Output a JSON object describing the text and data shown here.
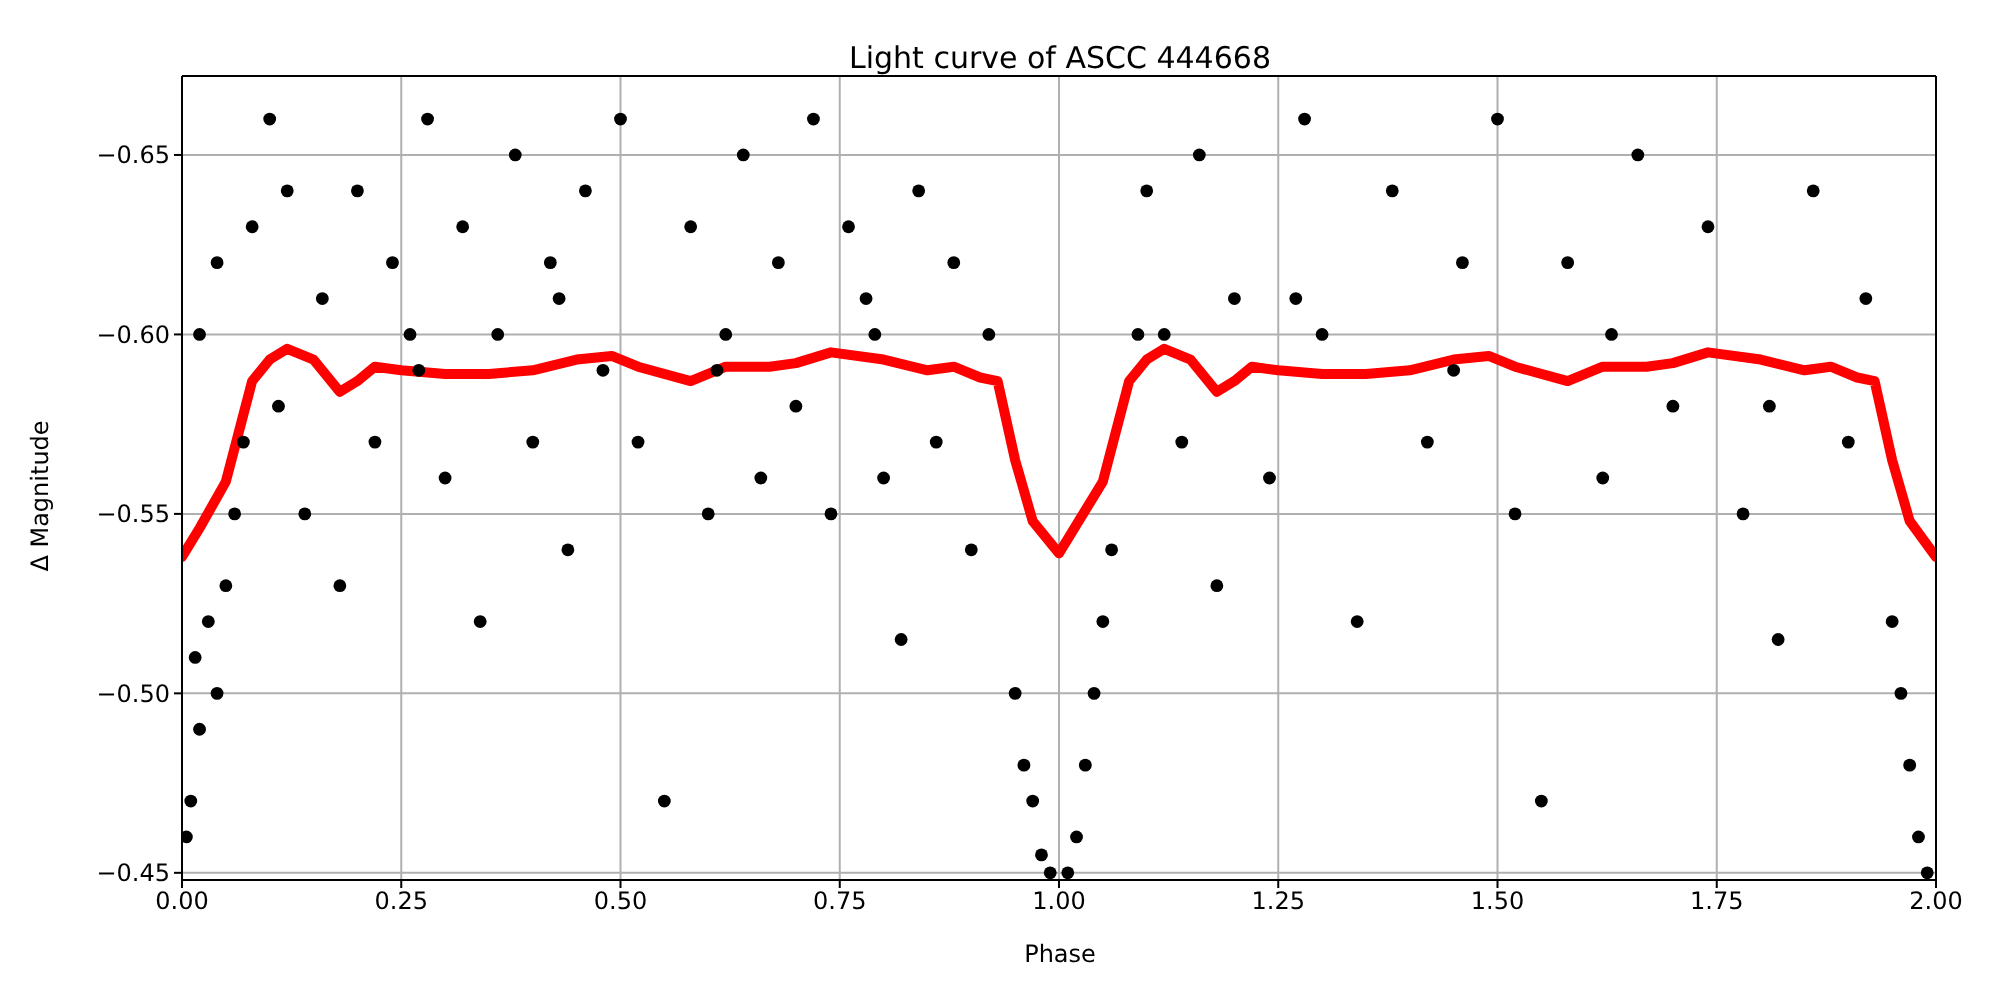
{
  "chart_data": {
    "type": "scatter",
    "title": "Light curve of ASCC 444668",
    "xlabel": "Phase",
    "ylabel": "Δ Magnitude",
    "xlim": [
      0,
      2
    ],
    "xticks": [
      {
        "value": 0,
        "label": "0.00"
      },
      {
        "value": 0.25,
        "label": "0.25"
      },
      {
        "value": 0.5,
        "label": "0.50"
      },
      {
        "value": 0.75,
        "label": "0.75"
      },
      {
        "value": 1,
        "label": "1.00"
      },
      {
        "value": 1.25,
        "label": "1.25"
      },
      {
        "value": 1.5,
        "label": "1.50"
      },
      {
        "value": 1.75,
        "label": "1.75"
      },
      {
        "value": 2,
        "label": "2.00"
      }
    ],
    "ylim": [
      -0.448,
      -0.672
    ],
    "yticks": [
      {
        "value": -0.65,
        "label": "−0.65"
      },
      {
        "value": -0.6,
        "label": "−0.60"
      },
      {
        "value": -0.55,
        "label": "−0.55"
      },
      {
        "value": -0.5,
        "label": "−0.50"
      },
      {
        "value": -0.45,
        "label": "−0.45"
      }
    ],
    "grid": true,
    "series": [
      {
        "color": "#000000",
        "marker": "circle",
        "x": [
          0.005,
          0.01,
          0.015,
          0.02,
          0.03,
          0.04,
          0.05,
          0.06,
          0.07,
          0.02,
          0.04,
          0.08,
          0.1,
          0.12,
          0.14,
          0.16,
          0.18,
          0.2,
          0.22,
          0.24,
          0.26,
          0.28,
          0.3,
          0.32,
          0.34,
          0.36,
          0.38,
          0.4,
          0.42,
          0.44,
          0.46,
          0.48,
          0.5,
          0.52,
          0.55,
          0.58,
          0.6,
          0.62,
          0.64,
          0.66,
          0.68,
          0.7,
          0.72,
          0.74,
          0.76,
          0.78,
          0.8,
          0.82,
          0.84,
          0.86,
          0.88,
          0.9,
          0.92,
          0.95,
          0.96,
          0.97,
          0.98,
          0.99,
          1.01,
          1.02,
          1.03,
          1.04,
          1.05,
          1.06,
          1.1,
          1.12,
          1.14,
          1.16,
          1.18,
          1.2,
          1.24,
          1.28,
          1.3,
          1.34,
          1.38,
          1.42,
          1.46,
          1.5,
          1.52,
          1.55,
          1.58,
          1.62,
          1.66,
          1.7,
          1.74,
          1.78,
          1.82,
          1.86,
          1.9,
          1.92,
          1.95,
          1.96,
          1.97,
          1.98,
          1.99,
          0.11,
          0.27,
          0.43,
          0.61,
          0.79,
          1.09,
          1.27,
          1.45,
          1.63,
          1.81
        ],
        "values": [
          -0.46,
          -0.47,
          -0.51,
          -0.49,
          -0.52,
          -0.5,
          -0.53,
          -0.55,
          -0.57,
          -0.6,
          -0.62,
          -0.63,
          -0.66,
          -0.64,
          -0.55,
          -0.61,
          -0.53,
          -0.64,
          -0.57,
          -0.62,
          -0.6,
          -0.66,
          -0.56,
          -0.63,
          -0.52,
          -0.6,
          -0.65,
          -0.57,
          -0.62,
          -0.54,
          -0.64,
          -0.59,
          -0.66,
          -0.57,
          -0.47,
          -0.63,
          -0.55,
          -0.6,
          -0.65,
          -0.56,
          -0.62,
          -0.58,
          -0.66,
          -0.55,
          -0.63,
          -0.61,
          -0.56,
          -0.515,
          -0.64,
          -0.57,
          -0.62,
          -0.54,
          -0.6,
          -0.5,
          -0.48,
          -0.47,
          -0.455,
          -0.45,
          -0.45,
          -0.46,
          -0.48,
          -0.5,
          -0.52,
          -0.54,
          -0.64,
          -0.6,
          -0.57,
          -0.65,
          -0.53,
          -0.61,
          -0.56,
          -0.66,
          -0.6,
          -0.52,
          -0.64,
          -0.57,
          -0.62,
          -0.66,
          -0.55,
          -0.47,
          -0.62,
          -0.56,
          -0.65,
          -0.58,
          -0.63,
          -0.55,
          -0.515,
          -0.64,
          -0.57,
          -0.61,
          -0.52,
          -0.5,
          -0.48,
          -0.46,
          -0.45,
          -0.58,
          -0.59,
          -0.61,
          -0.59,
          -0.6,
          -0.6,
          -0.61,
          -0.59,
          -0.6,
          -0.58
        ]
      },
      {
        "type": "line",
        "color": "#ff0000",
        "x": [
          0,
          0.02,
          0.05,
          0.08,
          0.1,
          0.12,
          0.15,
          0.18,
          0.2,
          0.22,
          0.25,
          0.3,
          0.35,
          0.4,
          0.45,
          0.49,
          0.52,
          0.58,
          0.62,
          0.67,
          0.7,
          0.74,
          0.8,
          0.85,
          0.88,
          0.91,
          0.93,
          0.95,
          0.97,
          1,
          1.02,
          1.05,
          1.08,
          1.1,
          1.12,
          1.15,
          1.18,
          1.2,
          1.22,
          1.25,
          1.3,
          1.35,
          1.4,
          1.45,
          1.49,
          1.52,
          1.58,
          1.62,
          1.67,
          1.7,
          1.74,
          1.8,
          1.85,
          1.88,
          1.91,
          1.93,
          1.95,
          1.97,
          2
        ],
        "values": [
          -0.538,
          -0.546,
          -0.559,
          -0.587,
          -0.593,
          -0.596,
          -0.593,
          -0.584,
          -0.587,
          -0.591,
          -0.59,
          -0.589,
          -0.589,
          -0.59,
          -0.593,
          -0.594,
          -0.591,
          -0.587,
          -0.591,
          -0.591,
          -0.592,
          -0.595,
          -0.593,
          -0.59,
          -0.591,
          -0.588,
          -0.587,
          -0.565,
          -0.548,
          -0.539,
          -0.547,
          -0.559,
          -0.587,
          -0.593,
          -0.596,
          -0.593,
          -0.584,
          -0.587,
          -0.591,
          -0.59,
          -0.589,
          -0.589,
          -0.59,
          -0.593,
          -0.594,
          -0.591,
          -0.587,
          -0.591,
          -0.591,
          -0.592,
          -0.595,
          -0.593,
          -0.59,
          -0.591,
          -0.588,
          -0.587,
          -0.565,
          -0.548,
          -0.538
        ]
      }
    ]
  }
}
